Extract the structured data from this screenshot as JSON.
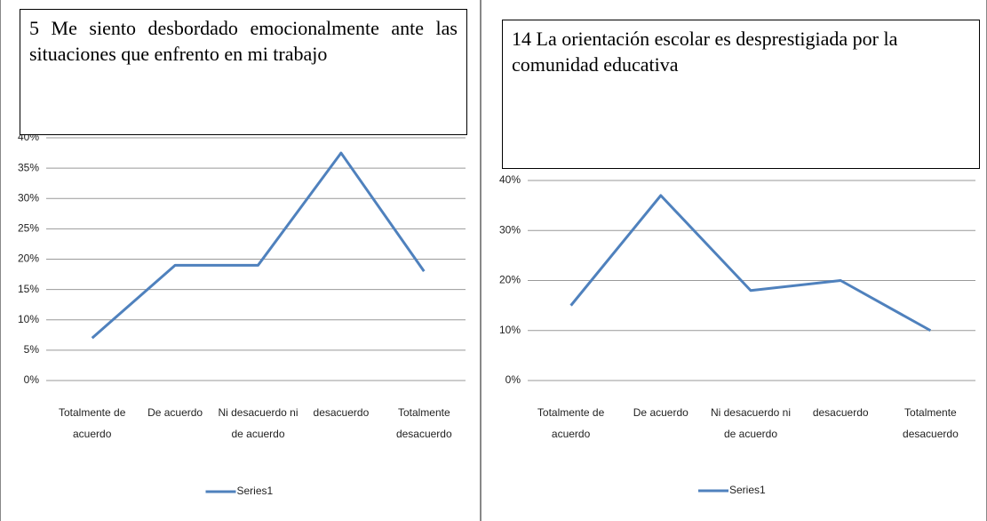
{
  "chart_data": [
    {
      "type": "line",
      "title": "5 Me siento desbordado emocionalmente ante las situaciones que enfrento en mi trabajo",
      "categories": [
        "Totalmente de acuerdo",
        "De acuerdo",
        "Ni desacuerdo ni de acuerdo",
        "desacuerdo",
        "Totalmente desacuerdo"
      ],
      "series": [
        {
          "name": "Series1",
          "color": "#4f81bd",
          "values": [
            7,
            19,
            19,
            37.5,
            18
          ]
        }
      ],
      "ylim": [
        0,
        40
      ],
      "yticks": [
        {
          "value": 0,
          "label": "0%"
        },
        {
          "value": 5,
          "label": "5%"
        },
        {
          "value": 10,
          "label": "10%"
        },
        {
          "value": 15,
          "label": "15%"
        },
        {
          "value": 20,
          "label": "20%"
        },
        {
          "value": 25,
          "label": "25%"
        },
        {
          "value": 30,
          "label": "30%"
        },
        {
          "value": 35,
          "label": "35%"
        },
        {
          "value": 40,
          "label": "40%"
        }
      ],
      "grid": true,
      "legend": "bottom"
    },
    {
      "type": "line",
      "title": "14 La orientación escolar es desprestigiada por la comunidad educativa",
      "categories": [
        "Totalmente de acuerdo",
        "De acuerdo",
        "Ni desacuerdo ni de acuerdo",
        "desacuerdo",
        "Totalmente desacuerdo"
      ],
      "series": [
        {
          "name": "Series1",
          "color": "#4f81bd",
          "values": [
            15,
            37,
            18,
            20,
            10
          ]
        }
      ],
      "ylim": [
        0,
        40
      ],
      "yticks": [
        {
          "value": 0,
          "label": "0%"
        },
        {
          "value": 10,
          "label": "10%"
        },
        {
          "value": 20,
          "label": "20%"
        },
        {
          "value": 30,
          "label": "30%"
        },
        {
          "value": 40,
          "label": "40%"
        }
      ],
      "grid": true,
      "legend": "bottom"
    }
  ]
}
